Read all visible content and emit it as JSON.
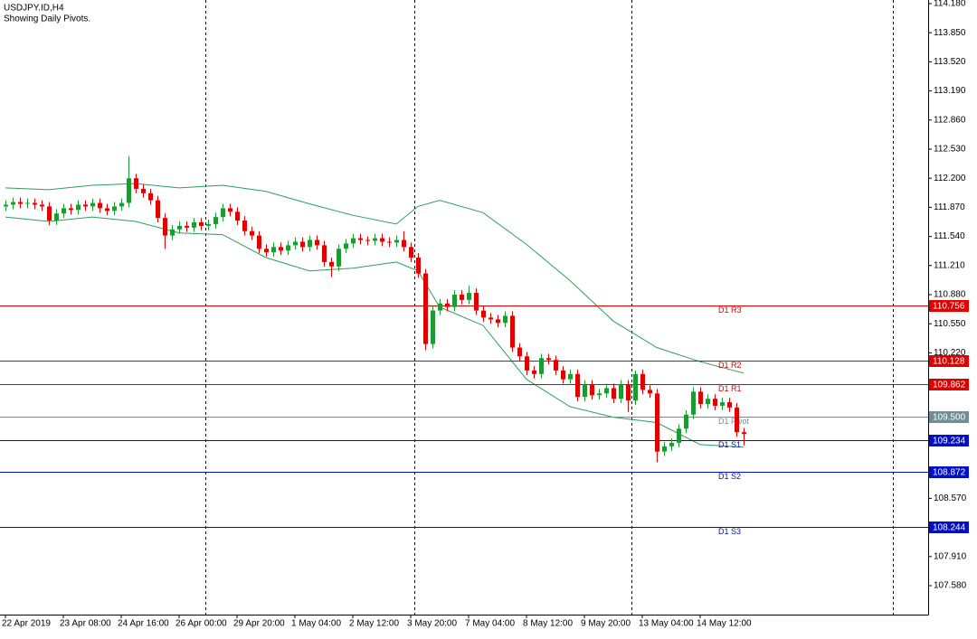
{
  "chart_data": {
    "type": "candlestick",
    "title": "USDJPY.ID,H4",
    "subtitle": "Showing Daily Pivots.",
    "ylim": [
      107.252,
      114.221
    ],
    "xlim": [
      -0.75,
      127.5
    ],
    "yticks": [
      {
        "value": 114.18,
        "label": "114.180"
      },
      {
        "value": 113.85,
        "label": "113.850"
      },
      {
        "value": 113.52,
        "label": "113.520"
      },
      {
        "value": 113.19,
        "label": "113.190"
      },
      {
        "value": 112.86,
        "label": "112.860"
      },
      {
        "value": 112.53,
        "label": "112.530"
      },
      {
        "value": 112.2,
        "label": "112.200"
      },
      {
        "value": 111.87,
        "label": "111.870"
      },
      {
        "value": 111.54,
        "label": "111.540"
      },
      {
        "value": 111.21,
        "label": "111.210"
      },
      {
        "value": 110.88,
        "label": "110.880"
      },
      {
        "value": 110.55,
        "label": "110.550"
      },
      {
        "value": 110.22,
        "label": "110.220"
      },
      {
        "value": 108.57,
        "label": "108.570"
      },
      {
        "value": 107.91,
        "label": "107.910"
      },
      {
        "value": 107.58,
        "label": "107.580"
      }
    ],
    "xticks": [
      {
        "value": 0,
        "label": "22 Apr 2019"
      },
      {
        "value": 8,
        "label": "23 Apr 08:00"
      },
      {
        "value": 16,
        "label": "24 Apr 16:00"
      },
      {
        "value": 24,
        "label": "26 Apr 00:00"
      },
      {
        "value": 32,
        "label": "29 Apr 20:00"
      },
      {
        "value": 40,
        "label": "1 May 04:00"
      },
      {
        "value": 48,
        "label": "2 May 12:00"
      },
      {
        "value": 56,
        "label": "3 May 20:00"
      },
      {
        "value": 64,
        "label": "7 May 04:00"
      },
      {
        "value": 72,
        "label": "8 May 12:00"
      },
      {
        "value": 80,
        "label": "9 May 20:00"
      },
      {
        "value": 88,
        "label": "13 May 04:00"
      },
      {
        "value": 96,
        "label": "14 May 12:00"
      }
    ],
    "up_color": "#1e9a35",
    "down_color": "#e00000",
    "open": [
      111.88,
      111.9,
      111.93,
      111.91,
      111.92,
      111.9,
      111.88,
      111.72,
      111.8,
      111.86,
      111.84,
      111.9,
      111.88,
      111.92,
      111.86,
      111.83,
      111.88,
      111.92,
      112.2,
      112.08,
      112.03,
      111.95,
      111.75,
      111.55,
      111.62,
      111.66,
      111.64,
      111.7,
      111.66,
      111.68,
      111.76,
      111.86,
      111.82,
      111.72,
      111.6,
      111.55,
      111.4,
      111.36,
      111.42,
      111.38,
      111.44,
      111.48,
      111.42,
      111.5,
      111.44,
      111.25,
      111.2,
      111.4,
      111.46,
      111.52,
      111.5,
      111.49,
      111.52,
      111.48,
      111.47,
      111.5,
      111.42,
      111.3,
      111.12,
      110.32,
      110.7,
      110.78,
      110.74,
      110.88,
      110.82,
      110.9,
      110.7,
      110.62,
      110.6,
      110.56,
      110.64,
      110.28,
      110.18,
      110.02,
      109.98,
      110.16,
      110.14,
      110.02,
      109.92,
      109.98,
      109.72,
      109.86,
      109.74,
      109.76,
      109.82,
      109.7,
      109.86,
      109.68,
      109.98,
      109.8,
      109.76,
      109.1,
      109.16,
      109.2,
      109.36,
      109.52,
      109.78,
      109.64,
      109.7,
      109.62,
      109.66,
      109.6,
      109.32
    ],
    "high": [
      111.95,
      111.98,
      111.98,
      111.97,
      111.97,
      111.95,
      111.93,
      111.85,
      111.91,
      111.91,
      111.95,
      111.95,
      111.97,
      111.97,
      111.91,
      111.93,
      111.97,
      112.45,
      112.25,
      112.13,
      112.08,
      112.0,
      111.8,
      111.67,
      111.71,
      111.71,
      111.75,
      111.75,
      111.73,
      111.81,
      111.91,
      111.91,
      111.87,
      111.77,
      111.65,
      111.6,
      111.45,
      111.47,
      111.47,
      111.49,
      111.53,
      111.53,
      111.55,
      111.55,
      111.49,
      111.3,
      111.45,
      111.51,
      111.57,
      111.57,
      111.54,
      111.57,
      111.57,
      111.53,
      111.55,
      111.6,
      111.47,
      111.35,
      111.17,
      110.75,
      110.83,
      110.83,
      110.93,
      110.93,
      110.98,
      110.95,
      110.75,
      110.67,
      110.65,
      110.69,
      110.69,
      110.33,
      110.23,
      110.07,
      110.21,
      110.21,
      110.19,
      110.07,
      110.03,
      110.03,
      109.91,
      109.91,
      109.81,
      109.87,
      109.87,
      109.91,
      109.91,
      110.02,
      110.03,
      109.85,
      109.81,
      109.21,
      109.25,
      109.41,
      109.57,
      109.83,
      109.83,
      109.75,
      109.75,
      109.71,
      109.71,
      109.65,
      109.37
    ],
    "low": [
      111.83,
      111.85,
      111.86,
      111.86,
      111.85,
      111.83,
      111.67,
      111.67,
      111.75,
      111.79,
      111.79,
      111.83,
      111.83,
      111.81,
      111.78,
      111.78,
      111.83,
      111.87,
      112.03,
      111.98,
      111.9,
      111.7,
      111.4,
      111.5,
      111.57,
      111.59,
      111.59,
      111.61,
      111.61,
      111.63,
      111.71,
      111.77,
      111.67,
      111.55,
      111.5,
      111.35,
      111.31,
      111.31,
      111.33,
      111.33,
      111.39,
      111.37,
      111.37,
      111.39,
      111.2,
      111.08,
      111.15,
      111.35,
      111.41,
      111.45,
      111.44,
      111.44,
      111.43,
      111.42,
      111.42,
      111.37,
      111.25,
      111.07,
      110.25,
      110.27,
      110.65,
      110.69,
      110.69,
      110.77,
      110.77,
      110.65,
      110.57,
      110.55,
      110.51,
      110.51,
      110.23,
      110.13,
      109.97,
      109.93,
      109.93,
      110.09,
      109.97,
      109.87,
      109.87,
      109.67,
      109.67,
      109.69,
      109.69,
      109.71,
      109.65,
      109.65,
      109.55,
      109.63,
      109.75,
      109.71,
      108.98,
      109.05,
      109.11,
      109.15,
      109.31,
      109.47,
      109.59,
      109.59,
      109.57,
      109.57,
      109.55,
      109.27,
      109.17
    ],
    "close": [
      111.9,
      111.93,
      111.91,
      111.92,
      111.9,
      111.88,
      111.72,
      111.8,
      111.86,
      111.84,
      111.9,
      111.88,
      111.92,
      111.86,
      111.83,
      111.88,
      111.92,
      112.2,
      112.08,
      112.03,
      111.95,
      111.75,
      111.55,
      111.62,
      111.66,
      111.64,
      111.7,
      111.66,
      111.68,
      111.76,
      111.86,
      111.82,
      111.72,
      111.6,
      111.55,
      111.4,
      111.36,
      111.42,
      111.38,
      111.44,
      111.48,
      111.42,
      111.5,
      111.44,
      111.25,
      111.2,
      111.4,
      111.46,
      111.52,
      111.5,
      111.49,
      111.52,
      111.48,
      111.47,
      111.5,
      111.42,
      111.3,
      111.12,
      110.32,
      110.7,
      110.78,
      110.74,
      110.88,
      110.82,
      110.9,
      110.7,
      110.62,
      110.6,
      110.56,
      110.64,
      110.28,
      110.18,
      110.02,
      109.98,
      110.16,
      110.14,
      110.02,
      109.92,
      109.98,
      109.72,
      109.86,
      109.74,
      109.76,
      109.82,
      109.7,
      109.86,
      109.68,
      109.98,
      109.8,
      109.76,
      109.1,
      109.16,
      109.2,
      109.36,
      109.52,
      109.78,
      109.64,
      109.7,
      109.62,
      109.66,
      109.6,
      109.32,
      109.3
    ],
    "bands": {
      "color": "#2e9e5a",
      "x": [
        0,
        6,
        12,
        18,
        24,
        30,
        36,
        42,
        48,
        54,
        57,
        60,
        66,
        72,
        78,
        84,
        90,
        96,
        102
      ],
      "upper": [
        112.09,
        112.07,
        112.12,
        112.14,
        112.09,
        112.12,
        112.05,
        111.91,
        111.78,
        111.68,
        111.88,
        111.95,
        111.81,
        111.45,
        111.04,
        110.58,
        110.28,
        110.12,
        109.99
      ],
      "lower": [
        111.76,
        111.71,
        111.76,
        111.71,
        111.58,
        111.56,
        111.3,
        111.15,
        111.18,
        111.25,
        111.15,
        110.74,
        110.53,
        109.92,
        109.61,
        109.49,
        109.43,
        109.18,
        109.15
      ]
    },
    "levels": [
      {
        "name": "D1 R3",
        "value": 110.756,
        "color": "#e00000"
      },
      {
        "name": "D1 R2",
        "value": 110.128,
        "color": "#e00000"
      },
      {
        "name": "D1 R1",
        "value": 109.862,
        "color": "#e00000"
      },
      {
        "name": "D1 Pivot",
        "value": 109.5,
        "value_label": "109.500",
        "color": "#6f8f98"
      },
      {
        "name": "D1 S1",
        "value": 109.234,
        "color": "#0010c8"
      },
      {
        "name": "D1 S2",
        "value": 108.872,
        "color": "#0010c8"
      },
      {
        "name": "D1 S3",
        "value": 108.244,
        "color": "#0010c8"
      }
    ]
  }
}
